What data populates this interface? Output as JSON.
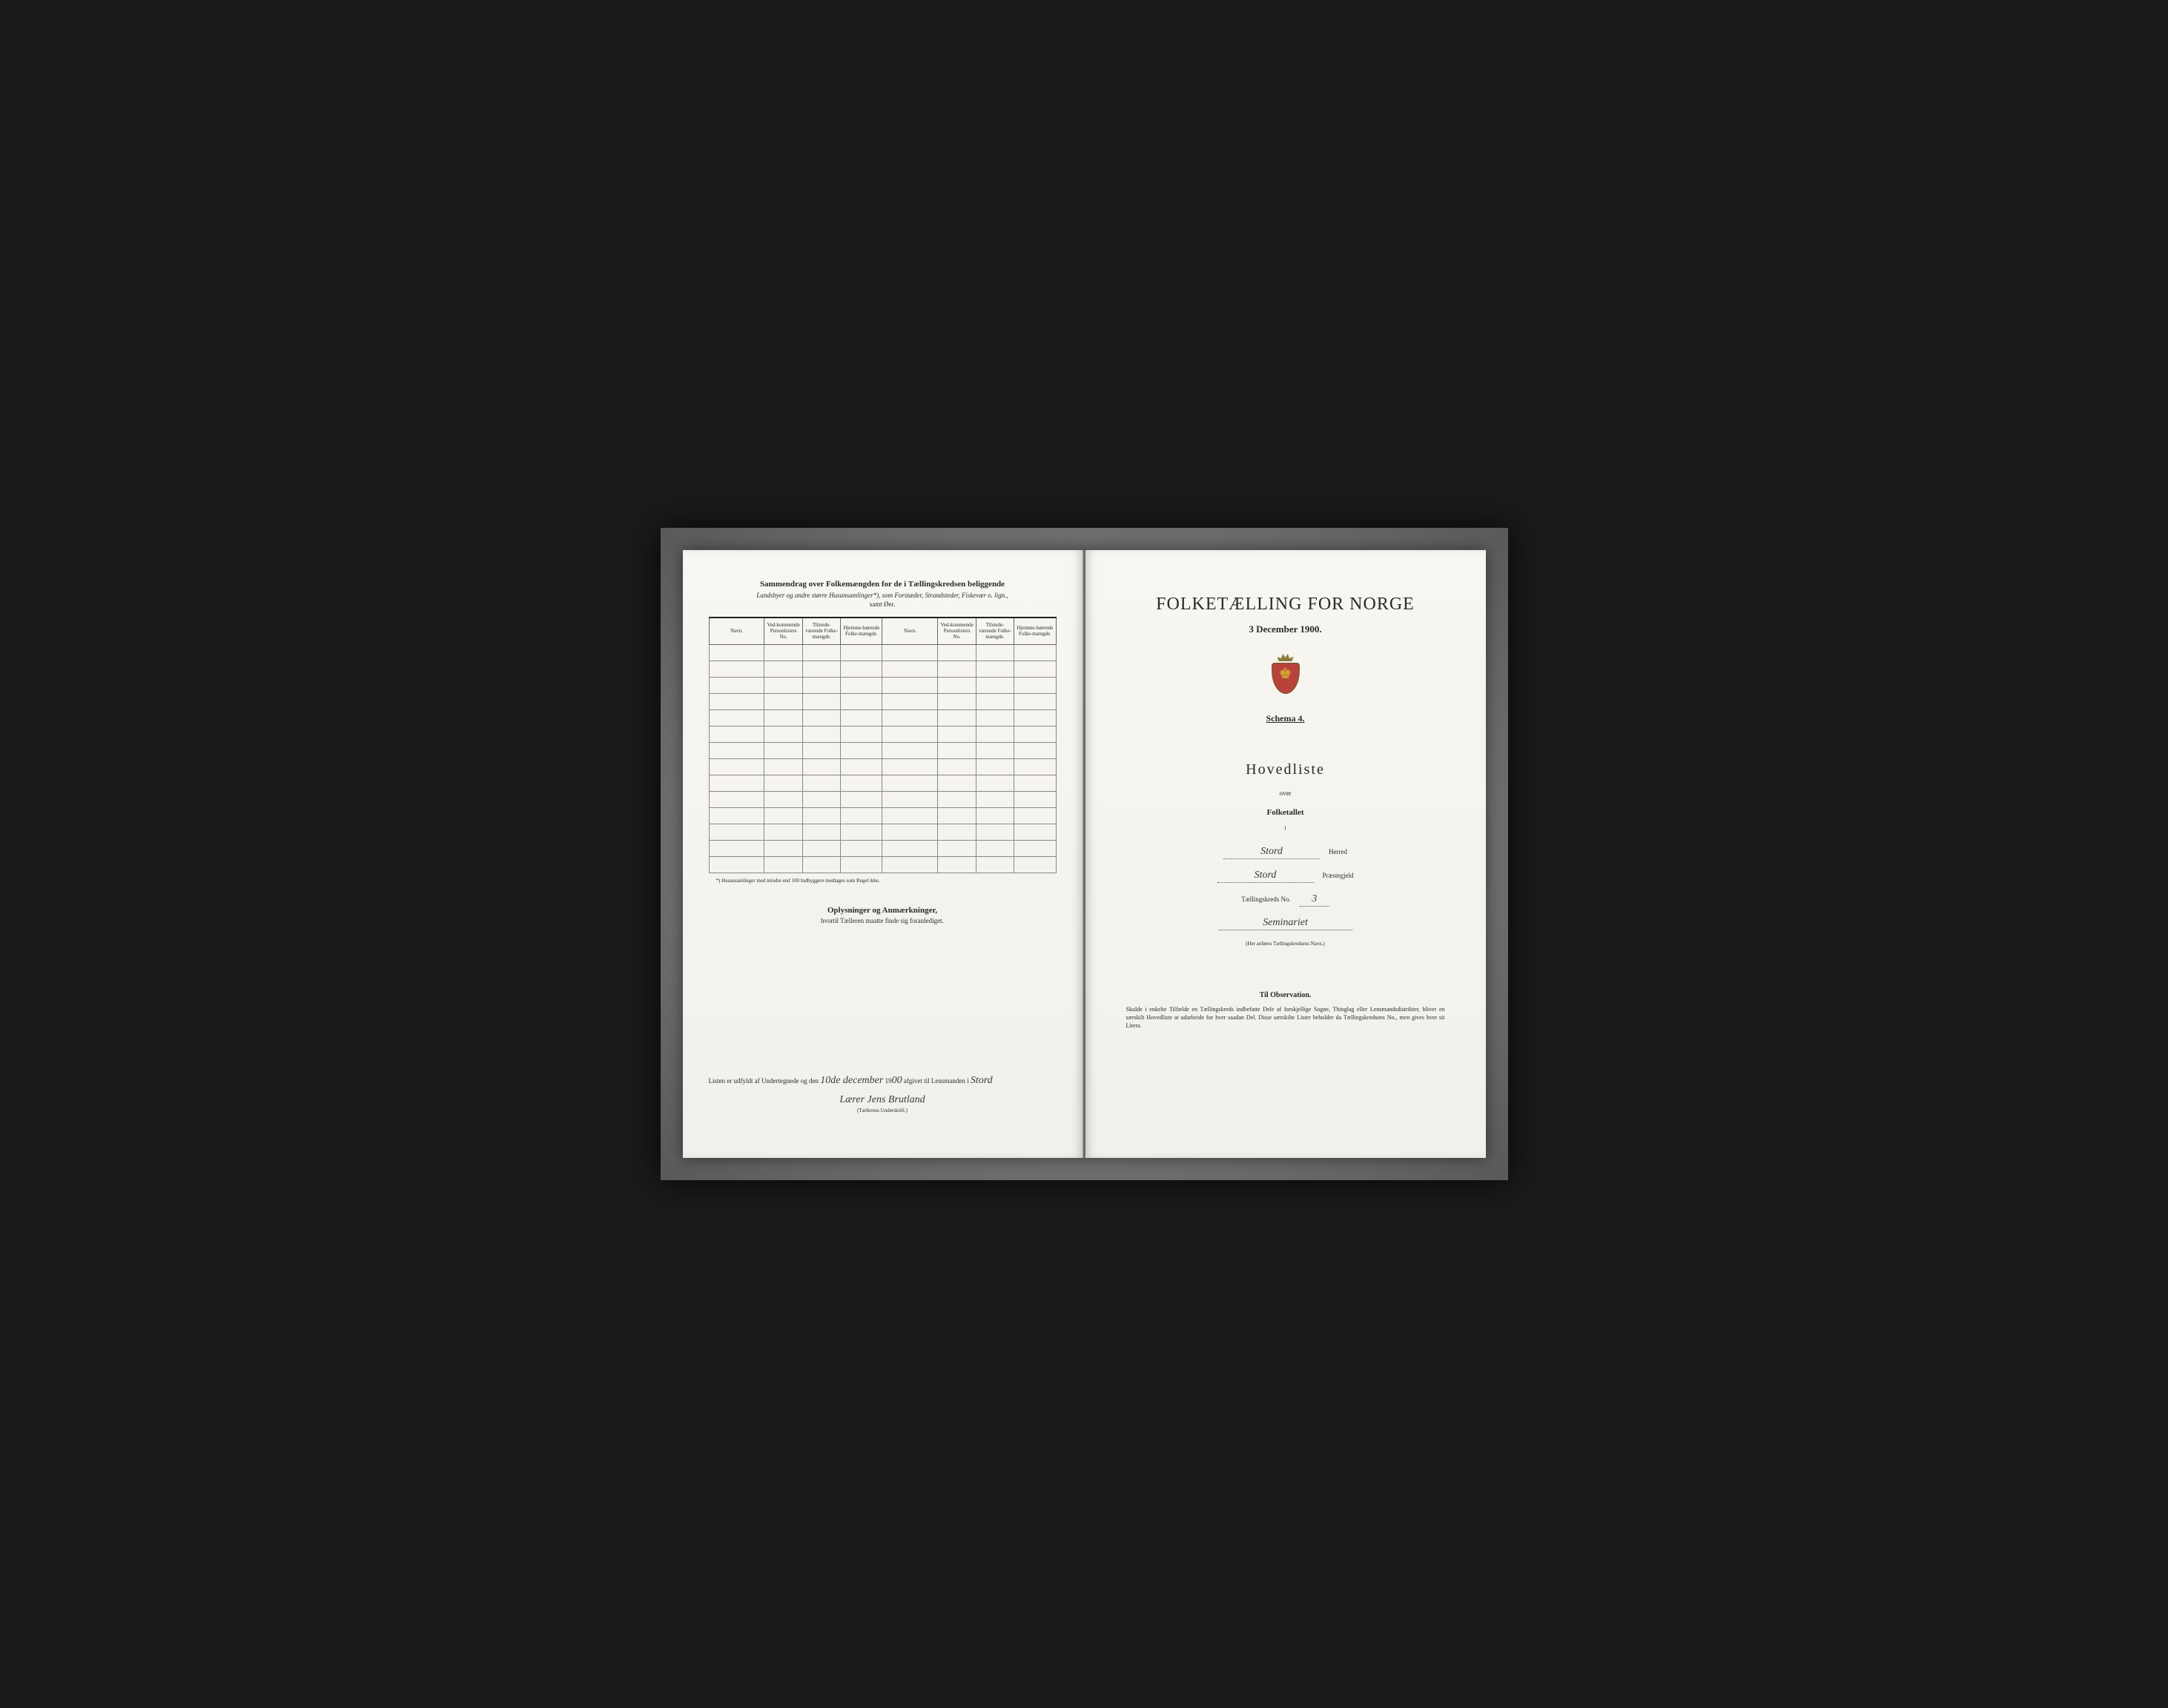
{
  "leftPage": {
    "title": "Sammendrag over Folkemængden for de i Tællingskredsen beliggende",
    "subtitle": "Landsbyer og andre større Husansamlinger*), som Forstæder, Strandsteder, Fiskevær o. lign.,",
    "subtitle2": "samt Øer.",
    "headers": {
      "navn": "Navn.",
      "vedkommende": "Ved-kommende Personlisters No.",
      "tilstede": "Tilstede-værende Folke-mængde.",
      "hjemme": "Hjemme-hørende Folke-mængde."
    },
    "footnote": "*) Husansamlinger med mindre end 100 Indbyggere medtages som Regel ikke.",
    "sectionHeading": "Oplysninger og Anmærkninger,",
    "sectionSub": "hvortil Tælleren maatte finde sig foranlediget.",
    "sigLine1a": "Listen er udfyldt af Undertegnede og den",
    "sigDate": "10de december",
    "sigLine1b": "19",
    "sigYear": "00",
    "sigLine1c": "afgivet til Lensmanden i",
    "sigPlace": "Stord",
    "signature": "Lærer Jens Brutland",
    "sigCaption": "(Tællerens Underskrift.)"
  },
  "rightPage": {
    "mainTitle": "FOLKETÆLLING FOR NORGE",
    "dateLine": "3 December 1900.",
    "schema": "Schema 4.",
    "hovedliste": "Hovedliste",
    "over": "over",
    "folketallet": "Folketallet",
    "small_i": "i",
    "herred": {
      "value": "Stord",
      "label": "Herred"
    },
    "praestegjeld": {
      "value": "Stord",
      "label": "Præstegjeld"
    },
    "kreds": {
      "prefix": "Tællingskreds No.",
      "value": "3"
    },
    "kredsName": {
      "value": "Seminariet",
      "caption": "(Her anføres Tællingskredsens Navn.)"
    },
    "observation": {
      "title": "Til Observation.",
      "text": "Skulde i enkelte Tilfælde en Tællingskreds indbefatte Dele af forskjellige Sogne, Thinglag eller Lensmandsdistrikter, bliver en særskilt Hovedliste at udarbeide for hver saadan Del. Disse særskilte Lister beholder da Tællingskredsens No., men gives hver sit Litera."
    }
  },
  "style": {
    "rows": 14,
    "ink": "#2a2a2a",
    "paper": "#f5f3ee"
  }
}
